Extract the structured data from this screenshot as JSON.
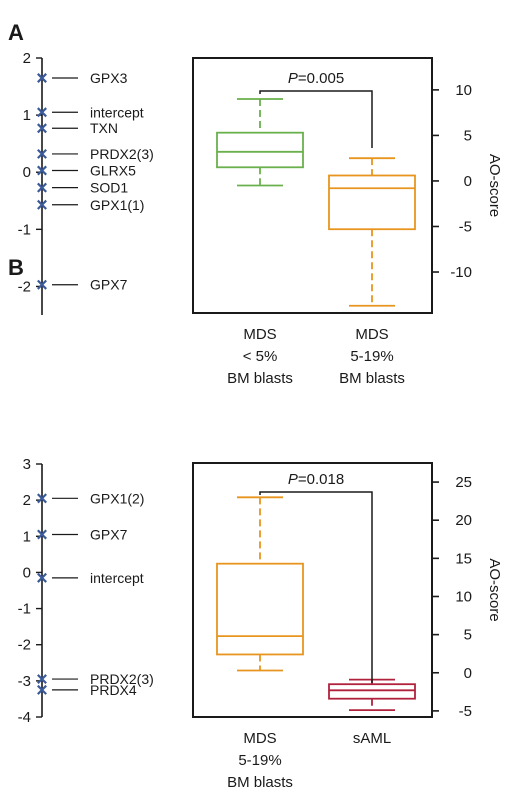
{
  "colors": {
    "axis": "#1a1a1a",
    "marker": "#3a5a9a",
    "green": "#6ab04c",
    "orange": "#e8951f",
    "crimson": "#b0223c"
  },
  "chart_data": [
    {
      "panel": "A",
      "type": "nomogram",
      "ylim": [
        -2.5,
        2
      ],
      "ticks": [
        2,
        1,
        0,
        -1,
        -2
      ],
      "genes": [
        {
          "name": "GPX3",
          "value": 1.65
        },
        {
          "name": "intercept",
          "value": 1.05
        },
        {
          "name": "TXN",
          "value": 0.77
        },
        {
          "name": "PRDX2(3)",
          "value": 0.32
        },
        {
          "name": "GLRX5",
          "value": 0.03
        },
        {
          "name": "SOD1",
          "value": -0.27
        },
        {
          "name": "GPX1(1)",
          "value": -0.57
        },
        {
          "name": "GPX7",
          "value": -1.97
        }
      ]
    },
    {
      "panel": "A",
      "type": "box",
      "ylabel": "AO-score",
      "ylim": [
        -14.5,
        13.5
      ],
      "ticks": [
        10,
        5,
        0,
        -5,
        -10
      ],
      "pvalue_label": "P",
      "pvalue_text": "=0.005",
      "groups": [
        {
          "label_lines": [
            "MDS",
            "< 5%",
            "BM blasts"
          ],
          "color": "green",
          "whisker_low": -0.5,
          "q1": 1.5,
          "median": 3.2,
          "q3": 5.3,
          "whisker_high": 9.0
        },
        {
          "label_lines": [
            "MDS",
            "5-19%",
            "BM blasts"
          ],
          "color": "orange",
          "whisker_low": -13.7,
          "q1": -5.3,
          "median": -0.8,
          "q3": 0.6,
          "whisker_high": 2.5
        }
      ]
    },
    {
      "panel": "B",
      "type": "nomogram",
      "ylim": [
        -4,
        3
      ],
      "ticks": [
        3,
        2,
        1,
        0,
        -1,
        -2,
        -3,
        -4
      ],
      "genes": [
        {
          "name": "GPX1(2)",
          "value": 2.05
        },
        {
          "name": "GPX7",
          "value": 1.05
        },
        {
          "name": "intercept",
          "value": -0.15
        },
        {
          "name": "PRDX2(3)",
          "value": -2.95
        },
        {
          "name": "PRDX4",
          "value": -3.25
        }
      ]
    },
    {
      "panel": "B",
      "type": "box",
      "ylabel": "AO-score",
      "ylim": [
        -5.8,
        27.5
      ],
      "ticks": [
        25,
        20,
        15,
        10,
        5,
        0,
        -5
      ],
      "pvalue_label": "P",
      "pvalue_text": "=0.018",
      "groups": [
        {
          "label_lines": [
            "MDS",
            "5-19%",
            "BM blasts"
          ],
          "color": "orange",
          "whisker_low": 0.3,
          "q1": 2.4,
          "median": 4.8,
          "q3": 14.3,
          "whisker_high": 23.0
        },
        {
          "label_lines": [
            "sAML"
          ],
          "color": "crimson",
          "whisker_low": -4.9,
          "q1": -3.4,
          "median": -2.3,
          "q3": -1.5,
          "whisker_high": -0.9
        }
      ]
    }
  ]
}
